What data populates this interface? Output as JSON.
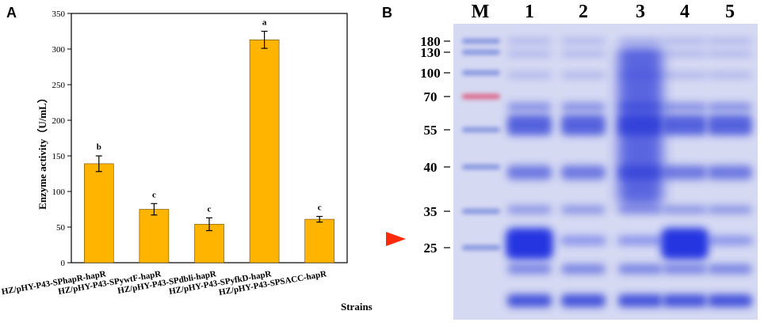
{
  "panel_a": {
    "letter": "A"
  },
  "panel_b": {
    "letter": "B",
    "ladder_label": "M",
    "lane_labels": [
      "1",
      "2",
      "3",
      "4",
      "5"
    ],
    "marker_sizes": [
      "180",
      "130",
      "100",
      "70",
      "55",
      "40",
      "35",
      "25"
    ],
    "colors": {
      "gel_background": "#d5d9f2",
      "band": "#2b3bd6",
      "red_marker": "#e0476a",
      "arrow": "#ff2a0a"
    }
  },
  "chart_data": {
    "type": "bar",
    "categories": [
      "HZ/pHY-P43-SPhapR-hapR",
      "HZ/pHY-P43-SPywtF-hapR",
      "HZ/pHY-P43-SPdbli-hapR",
      "HZ/pHY-P43-SPyfkD-hapR",
      "HZ/pHY-P43-SPSACC-hapR"
    ],
    "values": [
      139,
      75,
      54,
      313,
      61
    ],
    "errors": [
      11,
      8,
      9,
      12,
      4
    ],
    "significance": [
      "b",
      "c",
      "c",
      "a",
      "c"
    ],
    "title": "",
    "xlabel": "Strains",
    "ylabel": "Enzyme activity（U/mL）",
    "ylim": [
      0,
      350
    ],
    "yticks": [
      0,
      50,
      100,
      150,
      200,
      250,
      300,
      350
    ],
    "bar_color": "#ffb400",
    "grid": false
  }
}
